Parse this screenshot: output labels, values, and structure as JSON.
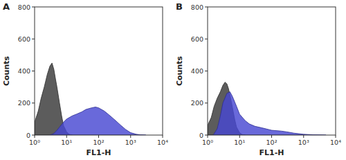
{
  "chart_data": [
    {
      "type": "area",
      "title": "A",
      "x_label": "FL1-H",
      "y_label": "Counts",
      "log": "x",
      "xlim": [
        1,
        10000
      ],
      "xticks": [
        {
          "value": 1,
          "label": "10⁰"
        },
        {
          "value": 10,
          "label": "10¹"
        },
        {
          "value": 100,
          "label": "10²"
        },
        {
          "value": 1000,
          "label": "10³"
        },
        {
          "value": 10000,
          "label": "10⁴"
        }
      ],
      "ylim": [
        0,
        800
      ],
      "yticks": [
        0,
        200,
        400,
        600,
        800
      ],
      "series": [
        {
          "color": "#5c5c5c",
          "x": [
            1,
            1.3,
            1.6,
            2,
            2.5,
            3,
            3.5,
            4,
            4.5,
            5,
            6,
            7,
            8,
            10,
            12,
            15
          ],
          "values": [
            80,
            150,
            230,
            300,
            380,
            430,
            450,
            410,
            350,
            300,
            200,
            120,
            60,
            20,
            5,
            0
          ]
        },
        {
          "color": "#4848d2",
          "x": [
            3,
            4,
            5,
            6,
            8,
            10,
            15,
            20,
            30,
            40,
            60,
            80,
            100,
            150,
            200,
            300,
            500,
            700,
            1000,
            1500,
            2000,
            3000
          ],
          "values": [
            0,
            10,
            30,
            50,
            80,
            100,
            120,
            130,
            145,
            160,
            170,
            175,
            170,
            150,
            130,
            100,
            60,
            35,
            15,
            5,
            2,
            0
          ]
        }
      ]
    },
    {
      "type": "area",
      "title": "B",
      "x_label": "FL1-H",
      "y_label": "Counts",
      "log": "x",
      "xlim": [
        1,
        10000
      ],
      "xticks": [
        {
          "value": 1,
          "label": "10⁰"
        },
        {
          "value": 10,
          "label": "10¹"
        },
        {
          "value": 100,
          "label": "10²"
        },
        {
          "value": 1000,
          "label": "10³"
        },
        {
          "value": 10000,
          "label": "10⁴"
        }
      ],
      "ylim": [
        0,
        800
      ],
      "yticks": [
        0,
        200,
        400,
        600,
        800
      ],
      "series": [
        {
          "color": "#5c5c5c",
          "x": [
            1,
            1.3,
            1.6,
            2,
            2.5,
            3,
            3.5,
            4,
            4.5,
            5,
            6,
            7,
            8,
            10,
            12,
            15
          ],
          "values": [
            60,
            110,
            180,
            230,
            270,
            310,
            330,
            320,
            290,
            250,
            170,
            100,
            50,
            15,
            3,
            0
          ]
        },
        {
          "color": "#4848d2",
          "x": [
            1.5,
            2,
            2.5,
            3,
            4,
            5,
            6,
            8,
            10,
            15,
            20,
            30,
            50,
            80,
            100,
            200,
            300,
            500,
            1000,
            2000,
            5000
          ],
          "values": [
            0,
            40,
            120,
            200,
            260,
            270,
            240,
            180,
            130,
            90,
            70,
            55,
            45,
            35,
            30,
            25,
            20,
            12,
            5,
            2,
            0
          ]
        }
      ]
    }
  ]
}
